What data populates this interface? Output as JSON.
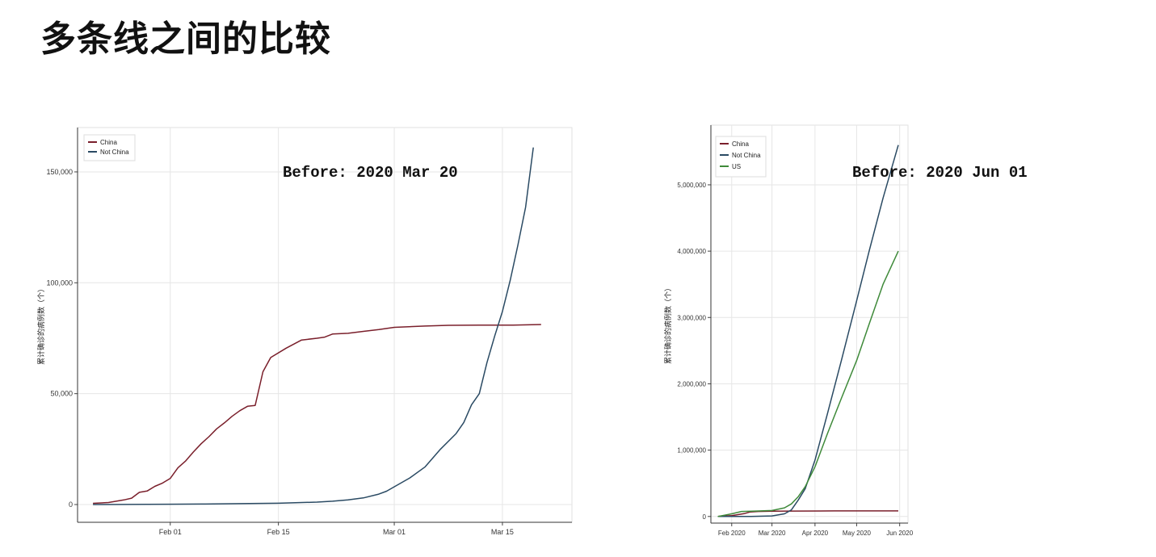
{
  "page": {
    "title": "多条线之间的比较"
  },
  "chart_data": [
    {
      "type": "line",
      "annotation": "Before: 2020 Mar 20",
      "ylabel": "累计确诊的病例数（个）",
      "xlabel": "",
      "x_ticks": [
        {
          "label": "Feb 01",
          "x": "2020-02-01"
        },
        {
          "label": "Feb 15",
          "x": "2020-02-15"
        },
        {
          "label": "Mar 01",
          "x": "2020-03-01"
        },
        {
          "label": "Mar 15",
          "x": "2020-03-15"
        }
      ],
      "y_ticks": [
        {
          "label": "0",
          "y": 0
        },
        {
          "label": "50,000",
          "y": 50000
        },
        {
          "label": "100,000",
          "y": 100000
        },
        {
          "label": "150,000",
          "y": 150000
        }
      ],
      "xlim": [
        "2020-01-20",
        "2020-03-24"
      ],
      "ylim": [
        -8000,
        170000
      ],
      "grid": true,
      "legend_position": "top-left",
      "series": [
        {
          "name": "China",
          "color": "#7a1f2b",
          "points": [
            [
              "2020-01-22",
              548
            ],
            [
              "2020-01-24",
              920
            ],
            [
              "2020-01-26",
              2100
            ],
            [
              "2020-01-27",
              2900
            ],
            [
              "2020-01-28",
              5500
            ],
            [
              "2020-01-29",
              6100
            ],
            [
              "2020-01-30",
              8200
            ],
            [
              "2020-01-31",
              9700
            ],
            [
              "2020-02-01",
              11800
            ],
            [
              "2020-02-02",
              16600
            ],
            [
              "2020-02-03",
              19700
            ],
            [
              "2020-02-04",
              23700
            ],
            [
              "2020-02-05",
              27400
            ],
            [
              "2020-02-06",
              30600
            ],
            [
              "2020-02-07",
              34100
            ],
            [
              "2020-02-08",
              36800
            ],
            [
              "2020-02-09",
              39800
            ],
            [
              "2020-02-10",
              42300
            ],
            [
              "2020-02-11",
              44300
            ],
            [
              "2020-02-12",
              44700
            ],
            [
              "2020-02-13",
              59900
            ],
            [
              "2020-02-14",
              66300
            ],
            [
              "2020-02-16",
              70500
            ],
            [
              "2020-02-18",
              74200
            ],
            [
              "2020-02-20",
              75000
            ],
            [
              "2020-02-21",
              75500
            ],
            [
              "2020-02-22",
              76900
            ],
            [
              "2020-02-24",
              77200
            ],
            [
              "2020-02-26",
              78100
            ],
            [
              "2020-02-28",
              78900
            ],
            [
              "2020-03-01",
              79900
            ],
            [
              "2020-03-05",
              80500
            ],
            [
              "2020-03-08",
              80800
            ],
            [
              "2020-03-12",
              80900
            ],
            [
              "2020-03-16",
              80900
            ],
            [
              "2020-03-20",
              81200
            ]
          ]
        },
        {
          "name": "Not China",
          "color": "#2a4a63",
          "points": [
            [
              "2020-01-22",
              7
            ],
            [
              "2020-02-01",
              140
            ],
            [
              "2020-02-05",
              210
            ],
            [
              "2020-02-10",
              400
            ],
            [
              "2020-02-15",
              600
            ],
            [
              "2020-02-20",
              1100
            ],
            [
              "2020-02-22",
              1500
            ],
            [
              "2020-02-24",
              2100
            ],
            [
              "2020-02-26",
              3000
            ],
            [
              "2020-02-28",
              4700
            ],
            [
              "2020-02-29",
              6000
            ],
            [
              "2020-03-01",
              8000
            ],
            [
              "2020-03-03",
              12000
            ],
            [
              "2020-03-05",
              17000
            ],
            [
              "2020-03-07",
              25000
            ],
            [
              "2020-03-09",
              32000
            ],
            [
              "2020-03-10",
              37000
            ],
            [
              "2020-03-11",
              45000
            ],
            [
              "2020-03-12",
              50000
            ],
            [
              "2020-03-13",
              64000
            ],
            [
              "2020-03-14",
              76000
            ],
            [
              "2020-03-15",
              87000
            ],
            [
              "2020-03-16",
              101000
            ],
            [
              "2020-03-17",
              117000
            ],
            [
              "2020-03-18",
              134000
            ],
            [
              "2020-03-19",
              161000
            ]
          ]
        }
      ]
    },
    {
      "type": "line",
      "annotation": "Before: 2020 Jun 01",
      "ylabel": "累计确诊的病例数（个）",
      "xlabel": "",
      "x_ticks": [
        {
          "label": "Feb 2020",
          "x": "2020-02-01"
        },
        {
          "label": "Mar 2020",
          "x": "2020-03-01"
        },
        {
          "label": "Apr 2020",
          "x": "2020-04-01"
        },
        {
          "label": "May 2020",
          "x": "2020-05-01"
        },
        {
          "label": "Jun 2020",
          "x": "2020-06-01"
        }
      ],
      "y_ticks": [
        {
          "label": "0",
          "y": 0
        },
        {
          "label": "1,000,000",
          "y": 1000000
        },
        {
          "label": "2,000,000",
          "y": 2000000
        },
        {
          "label": "3,000,000",
          "y": 3000000
        },
        {
          "label": "4,000,000",
          "y": 4000000
        },
        {
          "label": "5,000,000",
          "y": 5000000
        }
      ],
      "xlim": [
        "2020-01-17",
        "2020-06-07"
      ],
      "ylim": [
        -100000,
        5900000
      ],
      "grid": true,
      "legend_position": "top-left",
      "series": [
        {
          "name": "China",
          "color": "#7a1f2b",
          "points": [
            [
              "2020-01-22",
              548
            ],
            [
              "2020-02-01",
              11800
            ],
            [
              "2020-02-10",
              42300
            ],
            [
              "2020-02-14",
              66300
            ],
            [
              "2020-02-20",
              75000
            ],
            [
              "2020-03-01",
              79900
            ],
            [
              "2020-03-15",
              80900
            ],
            [
              "2020-04-15",
              83300
            ],
            [
              "2020-05-15",
              84000
            ],
            [
              "2020-05-31",
              84100
            ]
          ]
        },
        {
          "name": "Not China",
          "color": "#2a4a63",
          "points": [
            [
              "2020-01-22",
              7
            ],
            [
              "2020-02-15",
              600
            ],
            [
              "2020-03-01",
              8000
            ],
            [
              "2020-03-10",
              40000
            ],
            [
              "2020-03-15",
              100000
            ],
            [
              "2020-03-20",
              250000
            ],
            [
              "2020-03-25",
              420000
            ],
            [
              "2020-04-01",
              850000
            ],
            [
              "2020-04-10",
              1550000
            ],
            [
              "2020-04-20",
              2350000
            ],
            [
              "2020-05-01",
              3250000
            ],
            [
              "2020-05-10",
              4000000
            ],
            [
              "2020-05-20",
              4800000
            ],
            [
              "2020-05-31",
              5600000
            ]
          ]
        },
        {
          "name": "US",
          "color": "#3f8a3a",
          "points": [
            [
              "2020-01-22",
              0
            ],
            [
              "2020-02-01",
              40000
            ],
            [
              "2020-02-08",
              75000
            ],
            [
              "2020-02-20",
              82000
            ],
            [
              "2020-03-01",
              90000
            ],
            [
              "2020-03-10",
              130000
            ],
            [
              "2020-03-15",
              190000
            ],
            [
              "2020-03-20",
              300000
            ],
            [
              "2020-03-25",
              450000
            ],
            [
              "2020-04-01",
              750000
            ],
            [
              "2020-04-10",
              1250000
            ],
            [
              "2020-04-20",
              1780000
            ],
            [
              "2020-05-01",
              2350000
            ],
            [
              "2020-05-10",
              2900000
            ],
            [
              "2020-05-20",
              3500000
            ],
            [
              "2020-05-31",
              4000000
            ]
          ]
        }
      ]
    }
  ]
}
